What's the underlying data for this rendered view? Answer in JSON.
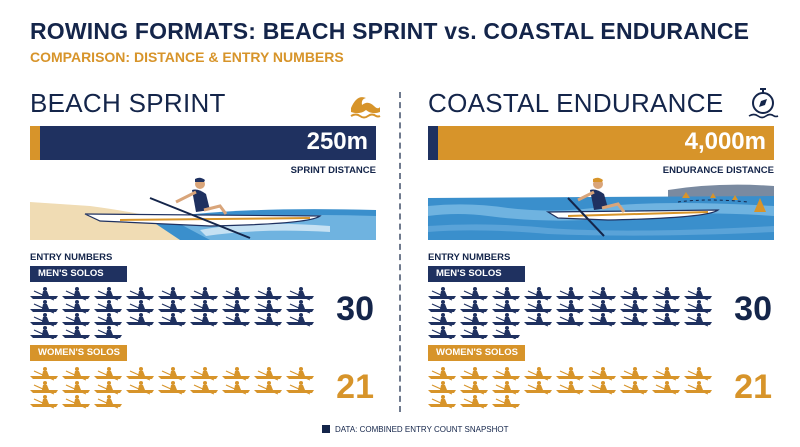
{
  "header": {
    "title": "ROWING FORMATS: BEACH SPRINT vs. COASTAL ENDURANCE",
    "subtitle": "COMPARISON: DISTANCE & ENTRY NUMBERS"
  },
  "colors": {
    "navy": "#1f3160",
    "gold": "#d7942a",
    "sand": "#f0dcb4",
    "water": "#3a8fcc"
  },
  "beach_sprint": {
    "title": "BEACH SPRINT",
    "icon": "wave-icon",
    "distance": "250m",
    "distance_label": "SPRINT DISTANCE",
    "entry_title": "ENTRY NUMBERS",
    "men_label": "MEN'S SOLOS",
    "men_count": "30",
    "women_label": "WOMEN'S SOLOS",
    "women_count": "21"
  },
  "coastal_endurance": {
    "title": "COASTAL ENDURANCE",
    "icon": "compass-icon",
    "distance": "4,000m",
    "distance_label": "ENDURANCE DISTANCE",
    "entry_title": "ENTRY NUMBERS",
    "men_label": "MEN'S SOLOS",
    "men_count": "30",
    "women_label": "WOMEN'S SOLOS",
    "women_count": "21"
  },
  "footer": {
    "note": "DATA: COMBINED ENTRY COUNT SNAPSHOT"
  }
}
